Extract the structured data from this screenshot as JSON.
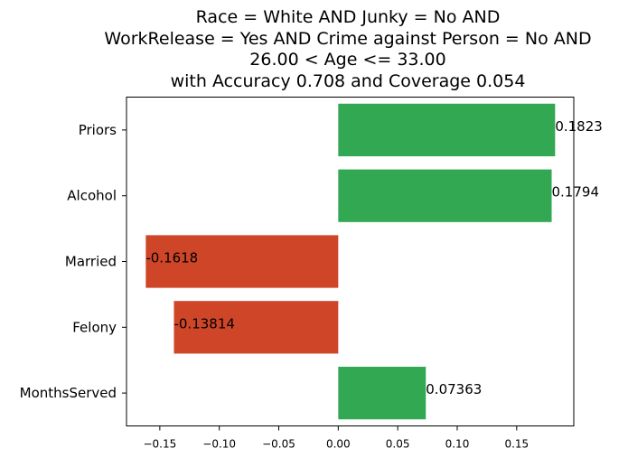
{
  "chart_data": {
    "type": "bar",
    "orientation": "horizontal",
    "title": [
      "Race = White AND Junky = No AND",
      "WorkRelease = Yes AND Crime against Person = No AND",
      "26.00 < Age <= 33.00",
      "with Accuracy 0.708 and Coverage 0.054"
    ],
    "categories": [
      "Priors",
      "Alcohol",
      "Married",
      "Felony",
      "MonthsServed"
    ],
    "values": [
      0.1823,
      0.1794,
      -0.1618,
      -0.13814,
      0.07363
    ],
    "value_labels": [
      "0.1823",
      "0.1794",
      "-0.1618",
      "-0.13814",
      "0.07363"
    ],
    "xlim": [
      -0.178,
      0.198
    ],
    "xticks": [
      -0.15,
      -0.1,
      -0.05,
      0.0,
      0.05,
      0.1,
      0.15
    ],
    "xtick_labels": [
      "−0.15",
      "−0.10",
      "−0.05",
      "0.00",
      "0.05",
      "0.10",
      "0.15"
    ],
    "xlabel": "",
    "ylabel": "",
    "grid": false,
    "colors": {
      "positive": "#33a852",
      "negative": "#cf4527"
    }
  }
}
